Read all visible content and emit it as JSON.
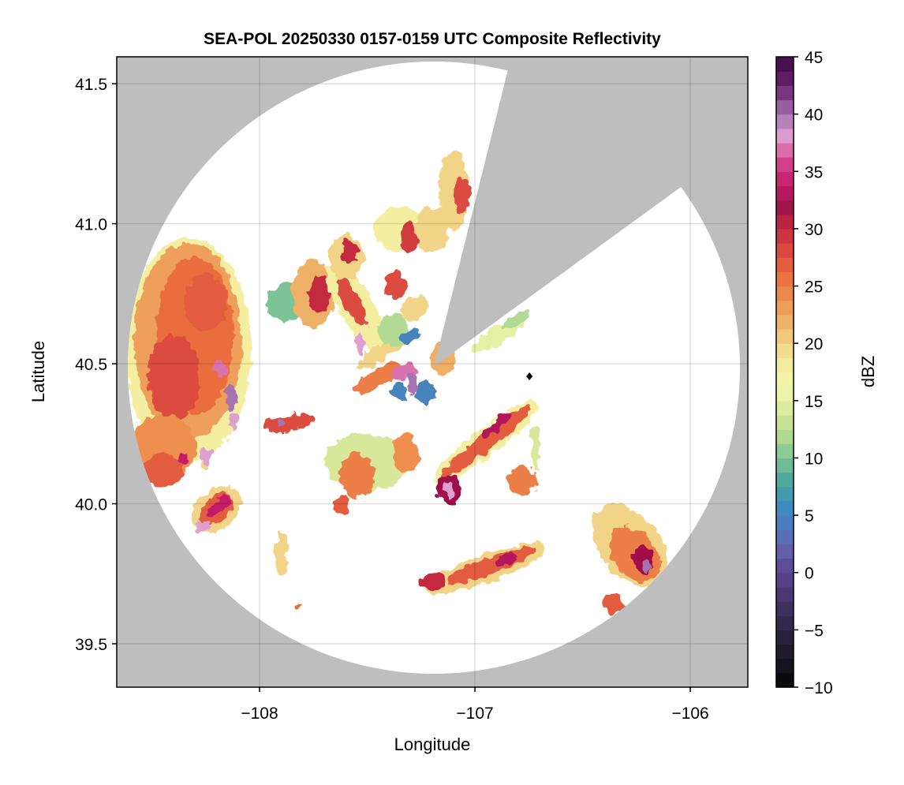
{
  "chart_data": {
    "type": "heatmap",
    "title": "SEA-POL 20250330 0157-0159 UTC Composite Reflectivity",
    "xlabel": "Longitude",
    "ylabel": "Latitude",
    "xlim": [
      -108.663,
      -105.733
    ],
    "ylim": [
      39.345,
      41.596
    ],
    "xticks": [
      -108,
      -107,
      -106
    ],
    "xtick_labels": [
      "−108",
      "−107",
      "−106"
    ],
    "yticks": [
      39.5,
      40.0,
      40.5,
      41.0,
      41.5
    ],
    "ytick_labels": [
      "39.5",
      "40.0",
      "40.5",
      "41.0",
      "41.5"
    ],
    "grid": true,
    "background_color": "#bebebe",
    "radar_location": {
      "lon": -107.19,
      "lat": 40.49
    },
    "blocked_sector_azimuth_deg": [
      14,
      54
    ],
    "marker": {
      "lon": -106.747,
      "lat": 40.455,
      "shape": "diamond",
      "color": "#000000"
    },
    "colorbar": {
      "label": "dBZ",
      "range": [
        -10,
        45
      ],
      "ticks": [
        -10,
        -5,
        0,
        5,
        10,
        15,
        20,
        25,
        30,
        35,
        40,
        45
      ],
      "tick_labels": [
        "−10",
        "−5",
        "0",
        "5",
        "10",
        "15",
        "20",
        "25",
        "30",
        "35",
        "40",
        "45"
      ],
      "stops": [
        [
          -10,
          "#050505"
        ],
        [
          -7.5,
          "#1a1726"
        ],
        [
          -5,
          "#2c2541"
        ],
        [
          -2.5,
          "#433467"
        ],
        [
          0,
          "#5a4591"
        ],
        [
          2,
          "#6460ac"
        ],
        [
          4,
          "#4e79bf"
        ],
        [
          6,
          "#3d8fbd"
        ],
        [
          8,
          "#4ea79b"
        ],
        [
          10,
          "#7cc495"
        ],
        [
          12,
          "#b3da94"
        ],
        [
          14,
          "#d7e89a"
        ],
        [
          16,
          "#f0f7ab"
        ],
        [
          18,
          "#f3eea0"
        ],
        [
          20,
          "#f2d489"
        ],
        [
          22,
          "#eeb066"
        ],
        [
          24,
          "#ee8e4f"
        ],
        [
          26,
          "#ea6d3e"
        ],
        [
          28,
          "#dc4b40"
        ],
        [
          30,
          "#c32b3f"
        ],
        [
          32,
          "#a0114a"
        ],
        [
          34,
          "#c41f6b"
        ],
        [
          36,
          "#d9468f"
        ],
        [
          38,
          "#dda0d0"
        ],
        [
          40,
          "#a673b0"
        ],
        [
          42.5,
          "#6b2070"
        ],
        [
          45,
          "#3d0a44"
        ]
      ]
    },
    "echo_cells": [
      {
        "lon": -108.33,
        "lat": 40.55,
        "rlon": 0.29,
        "rlat": 0.4,
        "rot": 0,
        "dbz": 18
      },
      {
        "lon": -108.33,
        "lat": 40.58,
        "rlon": 0.25,
        "rlat": 0.35,
        "rot": 0,
        "dbz": 23
      },
      {
        "lon": -108.3,
        "lat": 40.6,
        "rlon": 0.18,
        "rlat": 0.28,
        "rot": 0,
        "dbz": 26
      },
      {
        "lon": -108.4,
        "lat": 40.45,
        "rlon": 0.12,
        "rlat": 0.15,
        "rot": 0,
        "dbz": 28
      },
      {
        "lon": -108.25,
        "lat": 40.72,
        "rlon": 0.1,
        "rlat": 0.1,
        "rot": 0,
        "dbz": 27
      },
      {
        "lon": -108.45,
        "lat": 40.2,
        "rlon": 0.15,
        "rlat": 0.12,
        "rot": 0,
        "dbz": 24
      },
      {
        "lon": -108.45,
        "lat": 40.12,
        "rlon": 0.1,
        "rlat": 0.06,
        "rot": 0,
        "dbz": 27
      },
      {
        "lon": -108.18,
        "lat": 40.48,
        "rlon": 0.03,
        "rlat": 0.03,
        "rot": 0,
        "dbz": 37
      },
      {
        "lon": -108.13,
        "lat": 40.38,
        "rlon": 0.025,
        "rlat": 0.05,
        "rot": 0,
        "dbz": 40
      },
      {
        "lon": -108.12,
        "lat": 40.29,
        "rlon": 0.02,
        "rlat": 0.03,
        "rot": 0,
        "dbz": 38
      },
      {
        "lon": -108.25,
        "lat": 40.17,
        "rlon": 0.03,
        "rlat": 0.03,
        "rot": 0,
        "dbz": 38
      },
      {
        "lon": -108.35,
        "lat": 40.16,
        "rlon": 0.02,
        "rlat": 0.02,
        "rot": 0,
        "dbz": 34
      },
      {
        "lon": -108.26,
        "lat": 40.14,
        "rlon": 0.012,
        "rlat": 0.012,
        "rot": 0,
        "dbz": 20
      },
      {
        "lon": -108.2,
        "lat": 39.98,
        "rlon": 0.13,
        "rlat": 0.07,
        "rot": -40,
        "dbz": 20
      },
      {
        "lon": -108.2,
        "lat": 39.98,
        "rlon": 0.09,
        "rlat": 0.045,
        "rot": -40,
        "dbz": 27
      },
      {
        "lon": -108.19,
        "lat": 39.99,
        "rlon": 0.07,
        "rlat": 0.02,
        "rot": -40,
        "dbz": 34
      },
      {
        "lon": -108.26,
        "lat": 39.92,
        "rlon": 0.03,
        "rlat": 0.02,
        "rot": 0,
        "dbz": 38
      },
      {
        "lon": -107.86,
        "lat": 40.29,
        "rlon": 0.12,
        "rlat": 0.03,
        "rot": -10,
        "dbz": 28
      },
      {
        "lon": -107.9,
        "lat": 40.29,
        "rlon": 0.02,
        "rlat": 0.015,
        "rot": 0,
        "dbz": 40
      },
      {
        "lon": -107.86,
        "lat": 40.72,
        "rlon": 0.11,
        "rlat": 0.07,
        "rot": -20,
        "dbz": 10
      },
      {
        "lon": -107.75,
        "lat": 40.75,
        "rlon": 0.1,
        "rlat": 0.12,
        "rot": 0,
        "dbz": 22
      },
      {
        "lon": -107.72,
        "lat": 40.75,
        "rlon": 0.05,
        "rlat": 0.07,
        "rot": 0,
        "dbz": 30
      },
      {
        "lon": -107.55,
        "lat": 40.7,
        "rlon": 0.08,
        "rlat": 0.18,
        "rot": -30,
        "dbz": 18
      },
      {
        "lon": -107.57,
        "lat": 40.72,
        "rlon": 0.04,
        "rlat": 0.1,
        "rot": -30,
        "dbz": 28
      },
      {
        "lon": -107.53,
        "lat": 40.57,
        "rlon": 0.02,
        "rlat": 0.04,
        "rot": 0,
        "dbz": 38
      },
      {
        "lon": -107.6,
        "lat": 40.88,
        "rlon": 0.08,
        "rlat": 0.08,
        "rot": 0,
        "dbz": 20
      },
      {
        "lon": -107.58,
        "lat": 40.9,
        "rlon": 0.04,
        "rlat": 0.04,
        "rot": 0,
        "dbz": 30
      },
      {
        "lon": -107.42,
        "lat": 40.55,
        "rlon": 0.15,
        "rlat": 0.03,
        "rot": -35,
        "dbz": 20
      },
      {
        "lon": -107.45,
        "lat": 40.45,
        "rlon": 0.12,
        "rlat": 0.03,
        "rot": -30,
        "dbz": 25
      },
      {
        "lon": -107.35,
        "lat": 40.98,
        "rlon": 0.12,
        "rlat": 0.08,
        "rot": -10,
        "dbz": 18
      },
      {
        "lon": -107.3,
        "lat": 40.95,
        "rlon": 0.05,
        "rlat": 0.05,
        "rot": 0,
        "dbz": 29
      },
      {
        "lon": -107.2,
        "lat": 40.98,
        "rlon": 0.08,
        "rlat": 0.08,
        "rot": 0,
        "dbz": 20
      },
      {
        "lon": -107.1,
        "lat": 41.12,
        "rlon": 0.07,
        "rlat": 0.14,
        "rot": 0,
        "dbz": 20
      },
      {
        "lon": -107.06,
        "lat": 41.1,
        "rlon": 0.04,
        "rlat": 0.06,
        "rot": 0,
        "dbz": 28
      },
      {
        "lon": -107.37,
        "lat": 40.78,
        "rlon": 0.05,
        "rlat": 0.05,
        "rot": 0,
        "dbz": 28
      },
      {
        "lon": -107.28,
        "lat": 40.7,
        "rlon": 0.07,
        "rlat": 0.04,
        "rot": -30,
        "dbz": 20
      },
      {
        "lon": -107.38,
        "lat": 40.62,
        "rlon": 0.07,
        "rlat": 0.06,
        "rot": 0,
        "dbz": 12
      },
      {
        "lon": -107.3,
        "lat": 40.6,
        "rlon": 0.05,
        "rlat": 0.02,
        "rot": -30,
        "dbz": 5
      },
      {
        "lon": -107.35,
        "lat": 40.4,
        "rlon": 0.04,
        "rlat": 0.03,
        "rot": -30,
        "dbz": 5
      },
      {
        "lon": -107.23,
        "lat": 40.4,
        "rlon": 0.05,
        "rlat": 0.04,
        "rot": 0,
        "dbz": 5
      },
      {
        "lon": -107.33,
        "lat": 40.47,
        "rlon": 0.06,
        "rlat": 0.03,
        "rot": -20,
        "dbz": 37
      },
      {
        "lon": -107.29,
        "lat": 40.43,
        "rlon": 0.02,
        "rlat": 0.04,
        "rot": 0,
        "dbz": 40
      },
      {
        "lon": -107.15,
        "lat": 40.52,
        "rlon": 0.06,
        "rlat": 0.06,
        "rot": 0,
        "dbz": 22
      },
      {
        "lon": -106.9,
        "lat": 40.6,
        "rlon": 0.14,
        "rlat": 0.03,
        "rot": -30,
        "dbz": 15
      },
      {
        "lon": -106.8,
        "lat": 40.66,
        "rlon": 0.07,
        "rlat": 0.02,
        "rot": -30,
        "dbz": 12
      },
      {
        "lon": -106.95,
        "lat": 40.22,
        "rlon": 0.3,
        "rlat": 0.05,
        "rot": -38,
        "dbz": 18
      },
      {
        "lon": -106.95,
        "lat": 40.22,
        "rlon": 0.26,
        "rlat": 0.03,
        "rot": -38,
        "dbz": 27
      },
      {
        "lon": -106.9,
        "lat": 40.28,
        "rlon": 0.08,
        "rlat": 0.02,
        "rot": -38,
        "dbz": 33
      },
      {
        "lon": -107.12,
        "lat": 40.05,
        "rlon": 0.06,
        "rlat": 0.05,
        "rot": -45,
        "dbz": 32
      },
      {
        "lon": -107.12,
        "lat": 40.05,
        "rlon": 0.02,
        "rlat": 0.03,
        "rot": 0,
        "dbz": 38
      },
      {
        "lon": -107.5,
        "lat": 40.15,
        "rlon": 0.2,
        "rlat": 0.1,
        "rot": 0,
        "dbz": 14
      },
      {
        "lon": -107.55,
        "lat": 40.1,
        "rlon": 0.08,
        "rlat": 0.08,
        "rot": 0,
        "dbz": 25
      },
      {
        "lon": -107.32,
        "lat": 40.18,
        "rlon": 0.06,
        "rlat": 0.07,
        "rot": 0,
        "dbz": 24
      },
      {
        "lon": -107.62,
        "lat": 40.0,
        "rlon": 0.04,
        "rlat": 0.03,
        "rot": 0,
        "dbz": 27
      },
      {
        "lon": -106.78,
        "lat": 40.08,
        "rlon": 0.07,
        "rlat": 0.05,
        "rot": 0,
        "dbz": 25
      },
      {
        "lon": -106.72,
        "lat": 40.2,
        "rlon": 0.02,
        "rlat": 0.08,
        "rot": 0,
        "dbz": 14
      },
      {
        "lon": -106.95,
        "lat": 39.77,
        "rlon": 0.3,
        "rlat": 0.05,
        "rot": -20,
        "dbz": 20
      },
      {
        "lon": -106.92,
        "lat": 39.78,
        "rlon": 0.22,
        "rlat": 0.03,
        "rot": -20,
        "dbz": 27
      },
      {
        "lon": -106.85,
        "lat": 39.8,
        "rlon": 0.05,
        "rlat": 0.02,
        "rot": -20,
        "dbz": 33
      },
      {
        "lon": -107.2,
        "lat": 39.72,
        "rlon": 0.06,
        "rlat": 0.03,
        "rot": 0,
        "dbz": 30
      },
      {
        "lon": -106.28,
        "lat": 39.85,
        "rlon": 0.14,
        "rlat": 0.17,
        "rot": -40,
        "dbz": 20
      },
      {
        "lon": -106.26,
        "lat": 39.82,
        "rlon": 0.1,
        "rlat": 0.11,
        "rot": -40,
        "dbz": 25
      },
      {
        "lon": -106.22,
        "lat": 39.8,
        "rlon": 0.05,
        "rlat": 0.05,
        "rot": 0,
        "dbz": 32
      },
      {
        "lon": -106.2,
        "lat": 39.78,
        "rlon": 0.02,
        "rlat": 0.02,
        "rot": 0,
        "dbz": 40
      },
      {
        "lon": -106.36,
        "lat": 39.64,
        "rlon": 0.05,
        "rlat": 0.04,
        "rot": 0,
        "dbz": 27
      },
      {
        "lon": -107.9,
        "lat": 39.82,
        "rlon": 0.03,
        "rlat": 0.08,
        "rot": 0,
        "dbz": 20
      },
      {
        "lon": -107.82,
        "lat": 39.63,
        "rlon": 0.02,
        "rlat": 0.01,
        "rot": 0,
        "dbz": 26
      }
    ]
  }
}
